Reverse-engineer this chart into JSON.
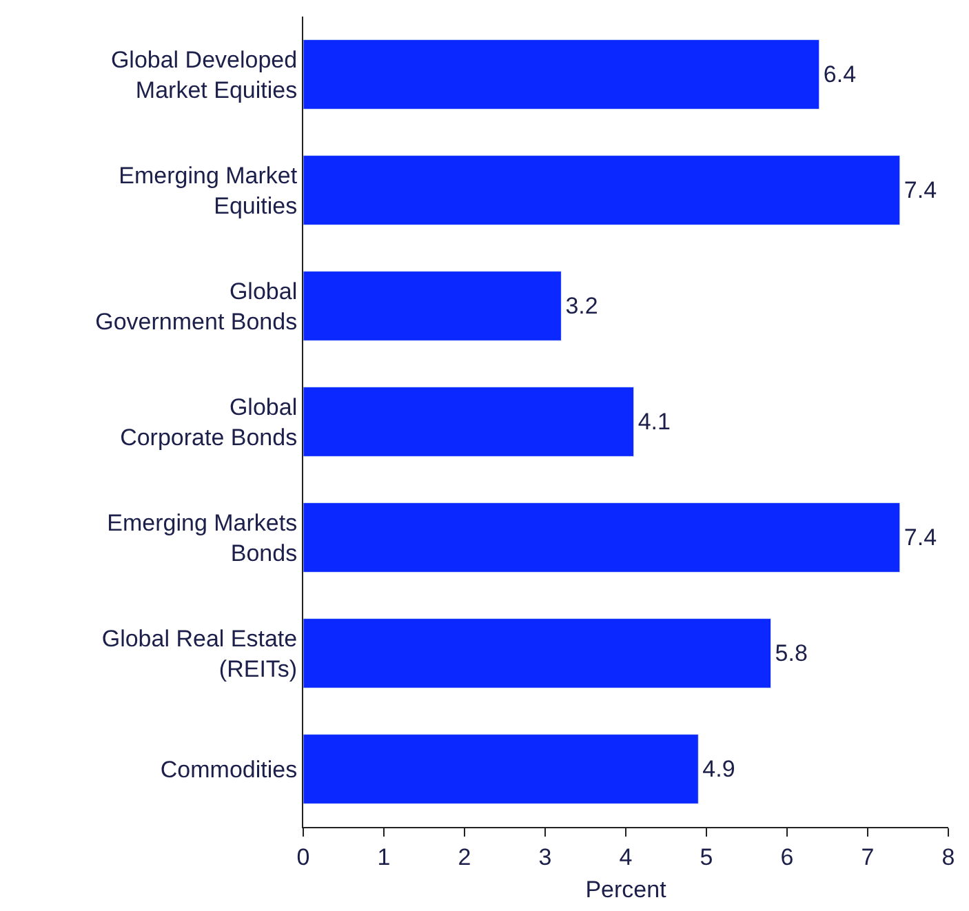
{
  "chart_data": {
    "type": "bar",
    "orientation": "horizontal",
    "xlabel": "Percent",
    "categories": [
      "Global Developed\nMarket Equities",
      "Emerging Market\nEquities",
      "Global\nGovernment Bonds",
      "Global\nCorporate Bonds",
      "Emerging Markets\nBonds",
      "Global Real Estate\n(REITs)",
      "Commodities"
    ],
    "values": [
      6.4,
      7.4,
      3.2,
      4.1,
      7.4,
      5.8,
      4.9
    ],
    "color": "#0a28ff",
    "xlim": [
      0,
      8
    ],
    "xticks": [
      0,
      1,
      2,
      3,
      4,
      5,
      6,
      7,
      8
    ],
    "data_labels": true,
    "legend": false
  }
}
